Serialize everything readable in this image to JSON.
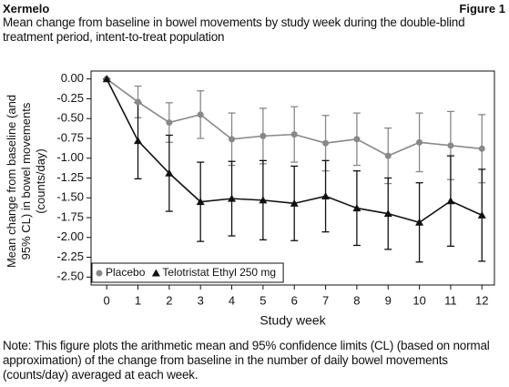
{
  "header": {
    "brand": "Xermelo",
    "figure": "Figure 1"
  },
  "chart_data": {
    "type": "line",
    "title": "Mean change from baseline in bowel movements by study week during the double-blind treatment period, intent-to-treat population",
    "x_label": "Study week",
    "y_label": "Mean change from baseline (and 95% CL) in bowel movements (counts/day)",
    "x": [
      0,
      1,
      2,
      3,
      4,
      5,
      6,
      7,
      8,
      9,
      10,
      11,
      12
    ],
    "xlim": [
      -0.5,
      12.4
    ],
    "xticks": [
      0,
      1,
      2,
      3,
      4,
      5,
      6,
      7,
      8,
      9,
      10,
      11,
      12
    ],
    "ylim": [
      -2.6,
      0.1
    ],
    "yticks": [
      {
        "value": 0,
        "label": "0.00"
      },
      -0.25,
      {
        "value": -0.5,
        "label": "-0.50"
      },
      -0.75,
      {
        "value": -1,
        "label": "-1.00"
      },
      -1.25,
      {
        "value": -1.5,
        "label": "-1.50"
      },
      -1.75,
      {
        "value": -2,
        "label": "-2.00"
      },
      -2.25,
      {
        "value": -2.5,
        "label": "-2.50"
      }
    ],
    "legend": "lower left",
    "series": [
      {
        "name": "Placebo",
        "color": "#888888",
        "marker": "circle",
        "values": [
          0,
          -0.29,
          -0.55,
          -0.45,
          -0.76,
          -0.72,
          -0.7,
          -0.81,
          -0.76,
          -0.97,
          -0.8,
          -0.84,
          -0.88
        ],
        "errors": [
          0,
          0.2,
          0.25,
          0.3,
          0.33,
          0.35,
          0.35,
          0.35,
          0.33,
          0.35,
          0.37,
          0.43,
          0.43
        ]
      },
      {
        "name": "Telotristat Ethyl 250 mg",
        "color": "#111111",
        "marker": "triangle",
        "values": [
          0,
          -0.78,
          -1.19,
          -1.55,
          -1.51,
          -1.53,
          -1.57,
          -1.48,
          -1.63,
          -1.7,
          -1.81,
          -1.54,
          -1.72
        ],
        "errors": [
          0,
          0.48,
          0.48,
          0.5,
          0.47,
          0.5,
          0.47,
          0.45,
          0.47,
          0.45,
          0.5,
          0.57,
          0.58
        ]
      }
    ],
    "note": "Note: This figure plots the arithmetic mean and 95% confidence limits (CL) (based on normal approximation) of the change from baseline in the number of daily bowel movements (counts/day) averaged at each week."
  }
}
